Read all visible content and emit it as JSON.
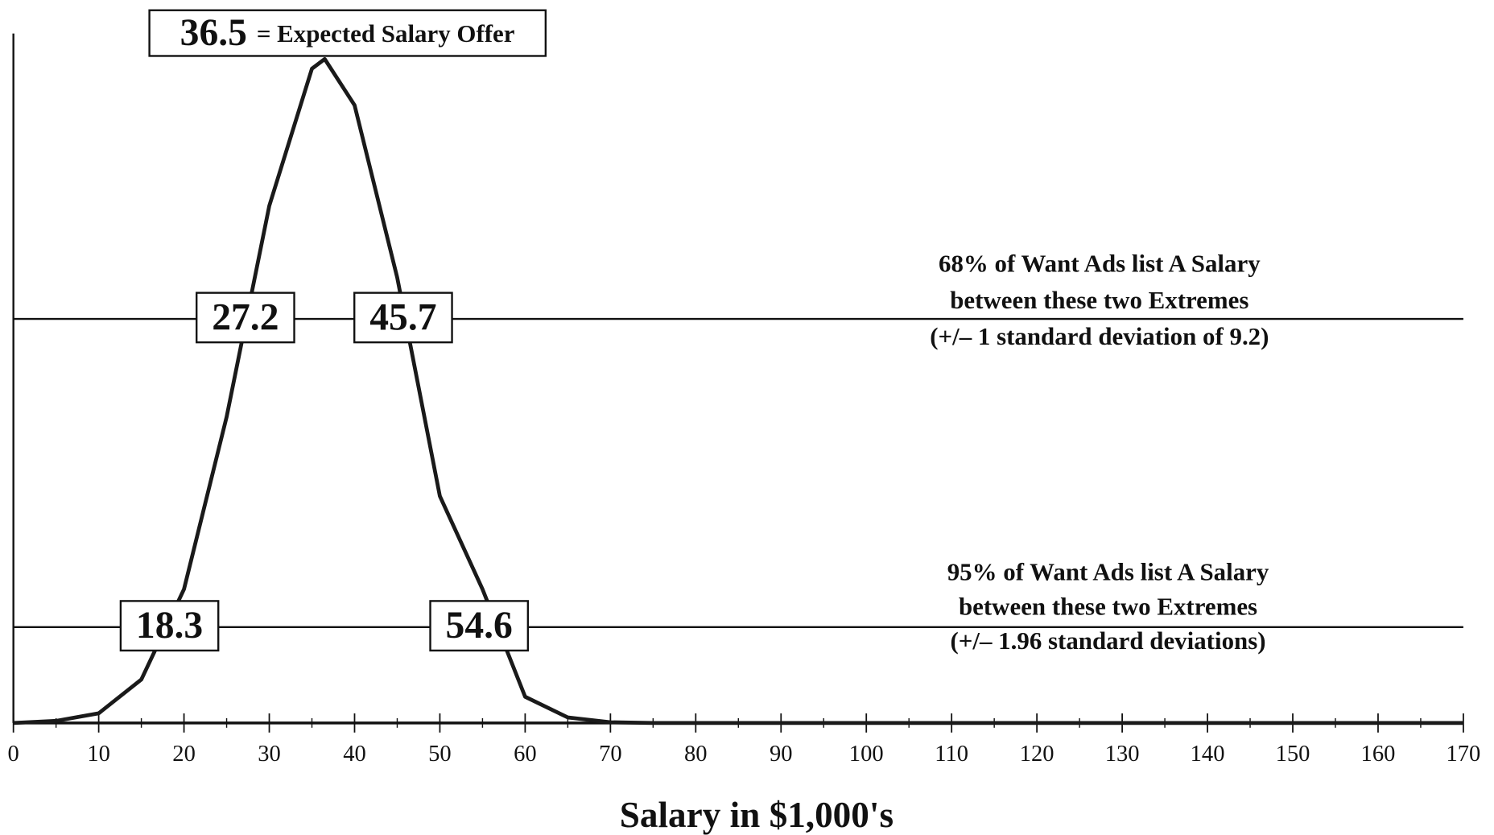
{
  "chart_data": {
    "type": "line",
    "x": [
      0,
      5,
      10,
      15,
      20,
      25,
      30,
      35,
      36.5,
      40,
      45,
      50,
      55,
      60,
      65,
      70,
      75,
      80,
      85,
      90,
      95,
      100,
      105,
      110,
      115,
      120,
      125,
      130,
      135,
      140,
      145,
      150,
      155,
      160,
      165,
      170
    ],
    "values": [
      0,
      0.3,
      1.4,
      6.3,
      19.4,
      44.4,
      75,
      94.9,
      96.3,
      89.6,
      64.6,
      32.9,
      19.4,
      3.8,
      0.8,
      0.1,
      0,
      0,
      0,
      0,
      0,
      0,
      0,
      0,
      0,
      0,
      0,
      0,
      0,
      0,
      0,
      0,
      0,
      0,
      0,
      0
    ],
    "color": "#1a1a1a",
    "xlabel": "Salary in $1,000's",
    "xlim": [
      0,
      170
    ],
    "xticks": [
      0,
      10,
      20,
      30,
      40,
      50,
      60,
      70,
      80,
      90,
      100,
      110,
      120,
      130,
      140,
      150,
      160,
      170
    ],
    "xminor_ticks": [
      5,
      15,
      25,
      35,
      45,
      55,
      65,
      75,
      85,
      95,
      105,
      115,
      125,
      135,
      145,
      155,
      165
    ],
    "ylim": [
      0,
      100
    ],
    "peak": {
      "value": 36.5,
      "label": "= Expected Salary Offer"
    },
    "reference_lines": [
      {
        "y": 58.6,
        "bounds": [
          27.2,
          45.7
        ],
        "text": [
          "68% of Want Ads list A Salary",
          "between these two Extremes",
          "(+/– 1 standard deviation of  9.2)"
        ]
      },
      {
        "y": 13.9,
        "bounds": [
          18.3,
          54.6
        ],
        "text": [
          "95% of Want Ads list A Salary",
          "between these two Extremes",
          "(+/– 1.96 standard deviations)"
        ]
      }
    ]
  }
}
